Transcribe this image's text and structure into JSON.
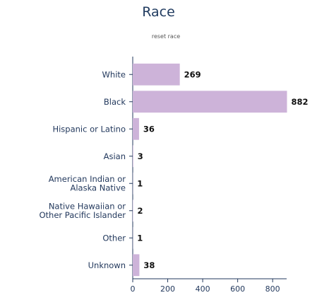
{
  "header": {
    "title": "Race",
    "reset_label": "reset race"
  },
  "chart_data": {
    "type": "bar",
    "orientation": "horizontal",
    "title": "Race",
    "categories": [
      "White",
      "Black",
      "Hispanic or Latino",
      "Asian",
      "American Indian or Alaska Native",
      "Native Hawaiian or Other Pacific Islander",
      "Other",
      "Unknown"
    ],
    "category_lines": [
      [
        "White"
      ],
      [
        "Black"
      ],
      [
        "Hispanic or Latino"
      ],
      [
        "Asian"
      ],
      [
        "American Indian or",
        "Alaska Native"
      ],
      [
        "Native Hawaiian or",
        "Other Pacific Islander"
      ],
      [
        "Other"
      ],
      [
        "Unknown"
      ]
    ],
    "values": [
      269,
      882,
      36,
      3,
      1,
      2,
      1,
      38
    ],
    "xlim": [
      0,
      880
    ],
    "xticks": [
      0,
      200,
      400,
      600,
      800
    ],
    "grid": false,
    "legend": "none",
    "colors": {
      "bar": "#cdb3d9",
      "axis": "#23395d",
      "text": "#23395d",
      "value_text": "#111111",
      "title": "#1f3a5f"
    }
  }
}
